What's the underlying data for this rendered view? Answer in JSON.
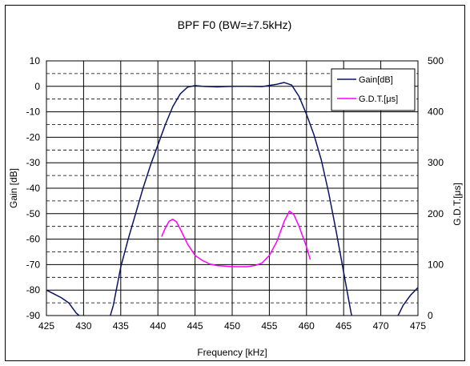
{
  "chart_data": {
    "type": "line",
    "title": "BPF F0 (BW=±7.5kHz)",
    "xlabel": "Frequency [kHz]",
    "ylabel": "Gain [dB]",
    "y2label": "G.D.T.[μs]",
    "xlim": [
      425,
      475
    ],
    "ylim": [
      -90,
      10
    ],
    "y2lim": [
      0,
      500
    ],
    "x_ticks": [
      425,
      430,
      435,
      440,
      445,
      450,
      455,
      460,
      465,
      470,
      475
    ],
    "x_tick_labels": [
      "425",
      "430",
      "435",
      "440",
      "445",
      "450",
      "455",
      "460",
      "465",
      "470",
      "475"
    ],
    "y_ticks": [
      10,
      0,
      -10,
      -20,
      -30,
      -40,
      -50,
      -60,
      -70,
      -80,
      -90
    ],
    "y_tick_labels": [
      "10",
      "0",
      "-10",
      "-20",
      "-30",
      "-40",
      "-50",
      "-60",
      "-70",
      "-80",
      "-90"
    ],
    "y2_ticks": [
      500,
      400,
      300,
      200,
      100,
      0
    ],
    "y2_tick_labels": [
      "500",
      "400",
      "300",
      "200",
      "100",
      "0"
    ],
    "grid": true,
    "legend_position": "top-right",
    "series": [
      {
        "name": "Gain[dB]",
        "axis": "left",
        "color": "#0a1466",
        "segments": [
          [
            [
              425,
              -80
            ],
            [
              426,
              -81.5
            ],
            [
              427,
              -83
            ],
            [
              428,
              -85
            ],
            [
              429,
              -89
            ],
            [
              429.4,
              -90
            ]
          ],
          [
            [
              433.6,
              -90
            ],
            [
              434,
              -86
            ],
            [
              435,
              -71
            ],
            [
              436,
              -60
            ],
            [
              437,
              -50
            ],
            [
              438,
              -40
            ],
            [
              439,
              -31
            ],
            [
              440,
              -23
            ],
            [
              441,
              -15
            ],
            [
              442,
              -8
            ],
            [
              443,
              -3
            ],
            [
              444,
              -0.3
            ],
            [
              445,
              0.3
            ],
            [
              446,
              0
            ],
            [
              448,
              -0.2
            ],
            [
              450,
              0
            ],
            [
              452,
              0
            ],
            [
              454,
              -0.1
            ],
            [
              456,
              0.8
            ],
            [
              457,
              1.5
            ],
            [
              458,
              0.5
            ],
            [
              459,
              -4
            ],
            [
              460,
              -11
            ],
            [
              461,
              -19
            ],
            [
              462,
              -29
            ],
            [
              463,
              -42
            ],
            [
              464,
              -57
            ],
            [
              465,
              -73
            ],
            [
              466,
              -89
            ],
            [
              466.1,
              -90
            ]
          ],
          [
            [
              472.3,
              -90
            ],
            [
              472.5,
              -89
            ],
            [
              473,
              -86
            ],
            [
              474,
              -82
            ],
            [
              475,
              -79
            ]
          ]
        ]
      },
      {
        "name": "G.D.T.[μs]",
        "axis": "right",
        "color": "#ff00ff",
        "points": [
          [
            440.5,
            155
          ],
          [
            441,
            172
          ],
          [
            441.5,
            185
          ],
          [
            442,
            189
          ],
          [
            442.5,
            184
          ],
          [
            443,
            170
          ],
          [
            444,
            140
          ],
          [
            445,
            118
          ],
          [
            446,
            108
          ],
          [
            447,
            101
          ],
          [
            448,
            98
          ],
          [
            449,
            97
          ],
          [
            450,
            96
          ],
          [
            451,
            96
          ],
          [
            452,
            96
          ],
          [
            453,
            98
          ],
          [
            454,
            103
          ],
          [
            455,
            118
          ],
          [
            456,
            145
          ],
          [
            457,
            185
          ],
          [
            457.7,
            205
          ],
          [
            458.3,
            198
          ],
          [
            459,
            175
          ],
          [
            460,
            135
          ],
          [
            460.5,
            110
          ]
        ]
      }
    ]
  }
}
